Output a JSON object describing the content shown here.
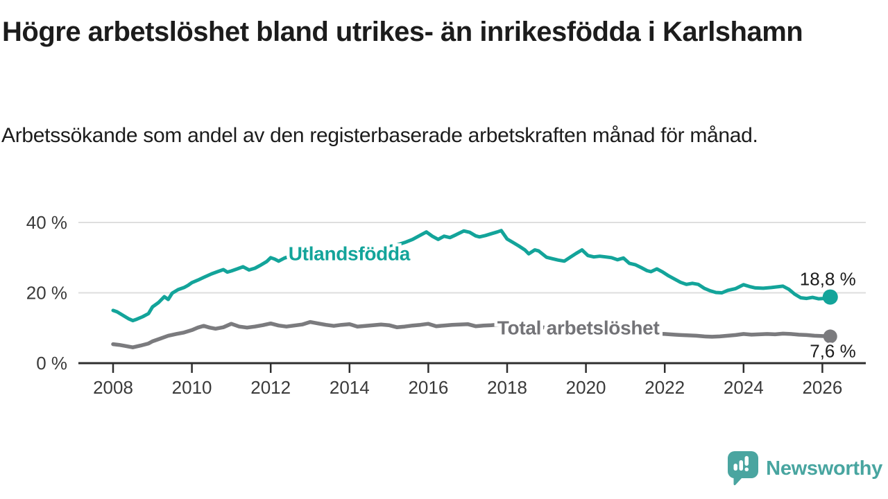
{
  "header": {
    "title": "Högre arbetslöshet bland utrikes- än inrikesfödda i Karlshamn",
    "subtitle": "Arbetssökande som andel av den registerbaserade arbetskraften månad för månad."
  },
  "branding": {
    "name": "Newsworthy",
    "logo_icon": "speech-bubble-bar-chart-exclamation-icon",
    "logo_color": "#4aa5a0",
    "text_color": "#48a5a0"
  },
  "chart_data": {
    "type": "line",
    "unit": "%",
    "title": "",
    "xlabel": "",
    "ylabel": "",
    "grid": "horizontal",
    "xlim": [
      2007.1,
      2027.3
    ],
    "ylim": [
      0,
      44
    ],
    "x_ticks": [
      2008,
      2010,
      2012,
      2014,
      2016,
      2018,
      2020,
      2022,
      2024,
      2026
    ],
    "y_ticks": [
      {
        "value": 0,
        "label": "0 %"
      },
      {
        "value": 20,
        "label": "20 %"
      },
      {
        "value": 40,
        "label": "40 %"
      }
    ],
    "colors": {
      "axis": "#2e2e2e",
      "gridline": "#dedede",
      "tick_text": "#3a3a3a",
      "value_label_text": "#1c1c1c"
    },
    "series": [
      {
        "name": "Total arbetslöshet",
        "color": "#7b7b7e",
        "label_color": "#737377",
        "line_width": 5.5,
        "end_value": 7.6,
        "end_label": "7,6 %",
        "end_label_position": "below",
        "label_anchor": {
          "x": 2017.75,
          "y": 8.2
        },
        "points": [
          [
            2008.0,
            5.4
          ],
          [
            2008.15,
            5.2
          ],
          [
            2008.3,
            4.9
          ],
          [
            2008.5,
            4.5
          ],
          [
            2008.7,
            5.0
          ],
          [
            2008.9,
            5.6
          ],
          [
            2009.0,
            6.2
          ],
          [
            2009.2,
            7.0
          ],
          [
            2009.4,
            7.8
          ],
          [
            2009.6,
            8.3
          ],
          [
            2009.8,
            8.7
          ],
          [
            2010.0,
            9.4
          ],
          [
            2010.15,
            10.1
          ],
          [
            2010.3,
            10.6
          ],
          [
            2010.45,
            10.1
          ],
          [
            2010.6,
            9.8
          ],
          [
            2010.8,
            10.2
          ],
          [
            2011.0,
            11.2
          ],
          [
            2011.2,
            10.4
          ],
          [
            2011.4,
            10.1
          ],
          [
            2011.6,
            10.4
          ],
          [
            2011.8,
            10.8
          ],
          [
            2012.0,
            11.3
          ],
          [
            2012.2,
            10.7
          ],
          [
            2012.4,
            10.4
          ],
          [
            2012.6,
            10.7
          ],
          [
            2012.8,
            11.0
          ],
          [
            2013.0,
            11.7
          ],
          [
            2013.2,
            11.3
          ],
          [
            2013.4,
            10.9
          ],
          [
            2013.6,
            10.6
          ],
          [
            2013.8,
            10.9
          ],
          [
            2014.0,
            11.1
          ],
          [
            2014.2,
            10.4
          ],
          [
            2014.4,
            10.6
          ],
          [
            2014.6,
            10.8
          ],
          [
            2014.8,
            11.0
          ],
          [
            2015.0,
            10.8
          ],
          [
            2015.2,
            10.2
          ],
          [
            2015.4,
            10.4
          ],
          [
            2015.6,
            10.7
          ],
          [
            2015.8,
            10.9
          ],
          [
            2016.0,
            11.2
          ],
          [
            2016.2,
            10.5
          ],
          [
            2016.4,
            10.7
          ],
          [
            2016.6,
            10.9
          ],
          [
            2016.8,
            11.0
          ],
          [
            2017.0,
            11.1
          ],
          [
            2017.2,
            10.5
          ],
          [
            2017.4,
            10.7
          ],
          [
            2017.6,
            10.8
          ],
          [
            2017.8,
            11.0
          ],
          [
            2018.0,
            10.7
          ],
          [
            2018.25,
            10.4
          ],
          [
            2018.5,
            10.2
          ],
          [
            2018.75,
            10.3
          ],
          [
            2019.0,
            10.1
          ],
          [
            2019.25,
            9.9
          ],
          [
            2019.5,
            9.7
          ],
          [
            2019.75,
            9.5
          ],
          [
            2020.0,
            9.3
          ],
          [
            2020.25,
            9.6
          ],
          [
            2020.5,
            9.5
          ],
          [
            2020.75,
            9.3
          ],
          [
            2021.0,
            9.1
          ],
          [
            2021.25,
            8.9
          ],
          [
            2021.5,
            8.6
          ],
          [
            2021.75,
            8.4
          ],
          [
            2022.0,
            8.3
          ],
          [
            2022.25,
            8.1
          ],
          [
            2022.4,
            8.0
          ],
          [
            2022.6,
            7.9
          ],
          [
            2022.8,
            7.8
          ],
          [
            2023.0,
            7.6
          ],
          [
            2023.2,
            7.5
          ],
          [
            2023.4,
            7.6
          ],
          [
            2023.6,
            7.8
          ],
          [
            2023.8,
            8.0
          ],
          [
            2024.0,
            8.3
          ],
          [
            2024.2,
            8.1
          ],
          [
            2024.4,
            8.2
          ],
          [
            2024.6,
            8.3
          ],
          [
            2024.8,
            8.2
          ],
          [
            2025.0,
            8.4
          ],
          [
            2025.2,
            8.3
          ],
          [
            2025.4,
            8.1
          ],
          [
            2025.6,
            8.0
          ],
          [
            2025.8,
            7.8
          ],
          [
            2026.0,
            7.7
          ],
          [
            2026.2,
            7.6
          ]
        ]
      },
      {
        "name": "Utlandsfödda",
        "color": "#13a49a",
        "label_color": "#13a49a",
        "line_width": 5,
        "end_value": 18.8,
        "end_label": "18,8 %",
        "end_label_position": "above",
        "label_anchor": {
          "x": 2012.45,
          "y": 29.3
        },
        "points": [
          [
            2008.0,
            15.0
          ],
          [
            2008.1,
            14.6
          ],
          [
            2008.25,
            13.6
          ],
          [
            2008.4,
            12.6
          ],
          [
            2008.5,
            12.1
          ],
          [
            2008.6,
            12.5
          ],
          [
            2008.75,
            13.2
          ],
          [
            2008.9,
            14.1
          ],
          [
            2009.0,
            16.0
          ],
          [
            2009.15,
            17.2
          ],
          [
            2009.3,
            18.9
          ],
          [
            2009.4,
            18.1
          ],
          [
            2009.5,
            19.9
          ],
          [
            2009.65,
            20.9
          ],
          [
            2009.8,
            21.5
          ],
          [
            2009.9,
            22.1
          ],
          [
            2010.0,
            22.9
          ],
          [
            2010.15,
            23.6
          ],
          [
            2010.3,
            24.4
          ],
          [
            2010.5,
            25.4
          ],
          [
            2010.65,
            26.0
          ],
          [
            2010.8,
            26.6
          ],
          [
            2010.9,
            25.9
          ],
          [
            2011.0,
            26.2
          ],
          [
            2011.15,
            26.8
          ],
          [
            2011.3,
            27.4
          ],
          [
            2011.45,
            26.5
          ],
          [
            2011.6,
            27.0
          ],
          [
            2011.75,
            27.9
          ],
          [
            2011.9,
            28.9
          ],
          [
            2012.0,
            30.0
          ],
          [
            2012.1,
            29.6
          ],
          [
            2012.2,
            29.0
          ],
          [
            2012.35,
            29.9
          ],
          [
            2012.5,
            30.4
          ],
          [
            2012.65,
            30.7
          ],
          [
            2012.8,
            30.2
          ],
          [
            2013.0,
            31.3
          ],
          [
            2013.15,
            30.8
          ],
          [
            2013.3,
            31.4
          ],
          [
            2013.5,
            31.9
          ],
          [
            2013.65,
            31.5
          ],
          [
            2013.8,
            31.2
          ],
          [
            2014.0,
            31.8
          ],
          [
            2014.2,
            31.3
          ],
          [
            2014.4,
            31.7
          ],
          [
            2014.6,
            32.3
          ],
          [
            2014.8,
            32.0
          ],
          [
            2015.0,
            33.1
          ],
          [
            2015.2,
            33.6
          ],
          [
            2015.4,
            34.3
          ],
          [
            2015.6,
            35.2
          ],
          [
            2015.8,
            36.4
          ],
          [
            2015.95,
            37.3
          ],
          [
            2016.1,
            36.1
          ],
          [
            2016.25,
            35.2
          ],
          [
            2016.4,
            36.1
          ],
          [
            2016.55,
            35.7
          ],
          [
            2016.7,
            36.5
          ],
          [
            2016.9,
            37.6
          ],
          [
            2017.05,
            37.2
          ],
          [
            2017.2,
            36.2
          ],
          [
            2017.3,
            35.9
          ],
          [
            2017.45,
            36.3
          ],
          [
            2017.6,
            36.8
          ],
          [
            2017.75,
            37.3
          ],
          [
            2017.85,
            37.7
          ],
          [
            2018.0,
            35.3
          ],
          [
            2018.15,
            34.3
          ],
          [
            2018.3,
            33.3
          ],
          [
            2018.45,
            32.2
          ],
          [
            2018.55,
            31.1
          ],
          [
            2018.7,
            32.2
          ],
          [
            2018.8,
            31.9
          ],
          [
            2019.0,
            30.1
          ],
          [
            2019.15,
            29.7
          ],
          [
            2019.3,
            29.3
          ],
          [
            2019.45,
            29.0
          ],
          [
            2019.6,
            30.1
          ],
          [
            2019.75,
            31.2
          ],
          [
            2019.9,
            32.2
          ],
          [
            2020.05,
            30.6
          ],
          [
            2020.2,
            30.2
          ],
          [
            2020.35,
            30.4
          ],
          [
            2020.5,
            30.2
          ],
          [
            2020.65,
            30.0
          ],
          [
            2020.8,
            29.4
          ],
          [
            2020.95,
            29.9
          ],
          [
            2021.1,
            28.4
          ],
          [
            2021.25,
            28.0
          ],
          [
            2021.4,
            27.2
          ],
          [
            2021.55,
            26.3
          ],
          [
            2021.65,
            26.0
          ],
          [
            2021.8,
            26.8
          ],
          [
            2021.95,
            25.9
          ],
          [
            2022.1,
            24.8
          ],
          [
            2022.25,
            23.9
          ],
          [
            2022.4,
            23.0
          ],
          [
            2022.55,
            22.4
          ],
          [
            2022.7,
            22.7
          ],
          [
            2022.85,
            22.4
          ],
          [
            2023.0,
            21.3
          ],
          [
            2023.15,
            20.6
          ],
          [
            2023.3,
            20.1
          ],
          [
            2023.45,
            20.0
          ],
          [
            2023.6,
            20.7
          ],
          [
            2023.8,
            21.2
          ],
          [
            2024.0,
            22.3
          ],
          [
            2024.15,
            21.8
          ],
          [
            2024.3,
            21.4
          ],
          [
            2024.5,
            21.3
          ],
          [
            2024.7,
            21.5
          ],
          [
            2024.85,
            21.7
          ],
          [
            2025.0,
            21.9
          ],
          [
            2025.15,
            21.0
          ],
          [
            2025.3,
            19.6
          ],
          [
            2025.45,
            18.6
          ],
          [
            2025.6,
            18.4
          ],
          [
            2025.75,
            18.7
          ],
          [
            2025.9,
            18.3
          ],
          [
            2026.05,
            18.4
          ],
          [
            2026.2,
            18.8
          ]
        ]
      }
    ]
  }
}
